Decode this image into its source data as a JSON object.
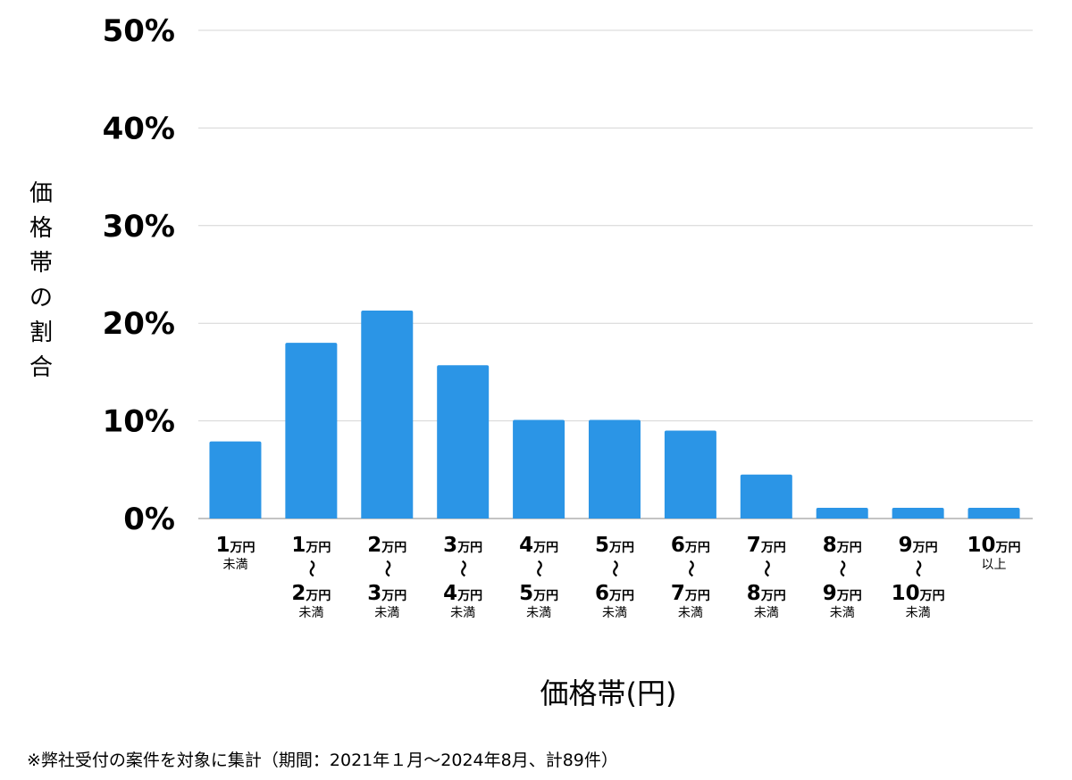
{
  "chart_data": {
    "type": "bar",
    "categories": [
      {
        "lines": [
          {
            "num": "1",
            "unit": "万円"
          }
        ],
        "suffix": "未満"
      },
      {
        "lines": [
          {
            "num": "1",
            "unit": "万円"
          },
          {
            "num": "2",
            "unit": "万円"
          }
        ],
        "suffix": "未満"
      },
      {
        "lines": [
          {
            "num": "2",
            "unit": "万円"
          },
          {
            "num": "3",
            "unit": "万円"
          }
        ],
        "suffix": "未満"
      },
      {
        "lines": [
          {
            "num": "3",
            "unit": "万円"
          },
          {
            "num": "4",
            "unit": "万円"
          }
        ],
        "suffix": "未満"
      },
      {
        "lines": [
          {
            "num": "4",
            "unit": "万円"
          },
          {
            "num": "5",
            "unit": "万円"
          }
        ],
        "suffix": "未満"
      },
      {
        "lines": [
          {
            "num": "5",
            "unit": "万円"
          },
          {
            "num": "6",
            "unit": "万円"
          }
        ],
        "suffix": "未満"
      },
      {
        "lines": [
          {
            "num": "6",
            "unit": "万円"
          },
          {
            "num": "7",
            "unit": "万円"
          }
        ],
        "suffix": "未満"
      },
      {
        "lines": [
          {
            "num": "7",
            "unit": "万円"
          },
          {
            "num": "8",
            "unit": "万円"
          }
        ],
        "suffix": "未満"
      },
      {
        "lines": [
          {
            "num": "8",
            "unit": "万円"
          },
          {
            "num": "9",
            "unit": "万円"
          }
        ],
        "suffix": "未満"
      },
      {
        "lines": [
          {
            "num": "9",
            "unit": "万円"
          },
          {
            "num": "10",
            "unit": "万円"
          }
        ],
        "suffix": "未満"
      },
      {
        "lines": [
          {
            "num": "10",
            "unit": "万円"
          }
        ],
        "suffix": "以上"
      }
    ],
    "range_separator": "〜",
    "values": [
      7.9,
      18.0,
      21.3,
      15.7,
      10.1,
      10.1,
      9.0,
      4.5,
      1.1,
      1.1,
      1.1
    ],
    "ylim": [
      0,
      50
    ],
    "yticks": [
      0,
      10,
      20,
      30,
      40,
      50
    ],
    "ytick_labels": [
      "0%",
      "10%",
      "20%",
      "30%",
      "40%",
      "50%"
    ],
    "ylabel": "価格帯の割合",
    "xlabel": "価格帯(円)",
    "grid": true,
    "bar_color": "#2b95e6",
    "grid_color": "#d4d4d4",
    "axis_color": "#b0b0b0"
  },
  "footnote": "※弊社受付の案件を対象に集計（期間：2021年１月〜2024年8月、計89件）"
}
